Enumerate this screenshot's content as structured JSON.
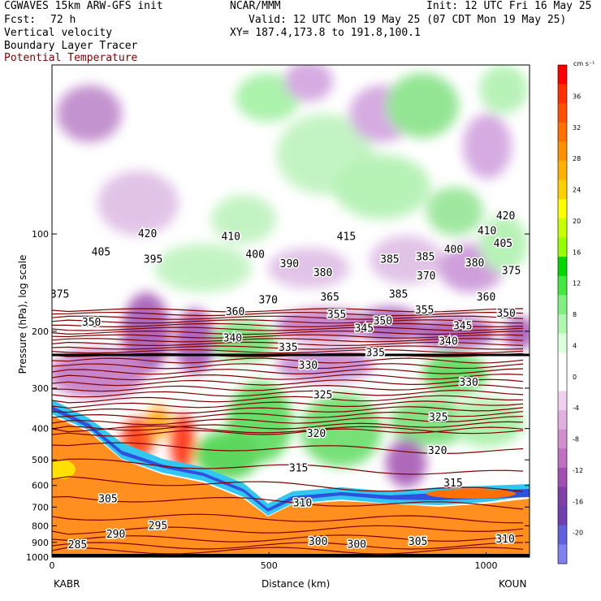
{
  "header": {
    "model": "CGWAVES 15km ARW-GFS init",
    "org": "NCAR/MMM",
    "init": "Init: 12 UTC Fri 16 May 25",
    "fcst_label": "Fcst:",
    "fcst_value": "72 h",
    "valid": "Valid: 12 UTC Mon 19 May 25 (07 CDT Mon 19 May 25)",
    "field1": "Vertical velocity",
    "xy": "XY= 187.4,173.8 to 191.8,100.1",
    "field2": "Boundary Layer Tracer",
    "field3": "Potential Temperature"
  },
  "colors": {
    "theta": "#800000",
    "terrain": "#000000"
  },
  "chart_data": {
    "type": "cross-section",
    "xlabel": "Distance (km)",
    "ylabel": "Pressure (hPa), log scale",
    "xlim": [
      0,
      1100
    ],
    "ylim": [
      1000,
      30
    ],
    "x_ticks": [
      0,
      500,
      1000
    ],
    "y_ticks": [
      100,
      200,
      300,
      400,
      500,
      600,
      700,
      800,
      900,
      1000
    ],
    "left_station": "KABR",
    "right_station": "KOUN",
    "colorbar": {
      "units": "cm s⁻¹",
      "ticks": [
        36,
        32,
        28,
        24,
        20,
        16,
        12,
        8,
        4,
        0,
        -4,
        -8,
        -12,
        -16,
        -20
      ],
      "colors": [
        "#ff0000",
        "#ff3000",
        "#ff5000",
        "#ff7000",
        "#ff9000",
        "#ffb000",
        "#ffd000",
        "#ffff00",
        "#c8ff00",
        "#96ff00",
        "#00d800",
        "#40e840",
        "#80f080",
        "#b0f8b0",
        "#dcffdc",
        "#ffffff",
        "#ffffff",
        "#f0d0f0",
        "#e0b0e0",
        "#d090d0",
        "#c070c0",
        "#a050b0",
        "#8040a8",
        "#7040b0",
        "#6060e0",
        "#8080f0"
      ]
    },
    "theta_labels": [
      {
        "text": "420",
        "x": 220,
        "p": 100
      },
      {
        "text": "410",
        "x": 412,
        "p": 102
      },
      {
        "text": "415",
        "x": 678,
        "p": 102
      },
      {
        "text": "410",
        "x": 1002,
        "p": 98
      },
      {
        "text": "420",
        "x": 1045,
        "p": 88
      },
      {
        "text": "405",
        "x": 113,
        "p": 114
      },
      {
        "text": "395",
        "x": 233,
        "p": 120
      },
      {
        "text": "400",
        "x": 468,
        "p": 116
      },
      {
        "text": "390",
        "x": 547,
        "p": 124
      },
      {
        "text": "385",
        "x": 778,
        "p": 120
      },
      {
        "text": "385",
        "x": 860,
        "p": 118
      },
      {
        "text": "400",
        "x": 925,
        "p": 112
      },
      {
        "text": "405",
        "x": 1039,
        "p": 107
      },
      {
        "text": "380",
        "x": 624,
        "p": 132
      },
      {
        "text": "380",
        "x": 974,
        "p": 123
      },
      {
        "text": "375",
        "x": 1058,
        "p": 130
      },
      {
        "text": "370",
        "x": 862,
        "p": 135
      },
      {
        "text": "375",
        "x": 18,
        "p": 154
      },
      {
        "text": "370",
        "x": 498,
        "p": 160
      },
      {
        "text": "365",
        "x": 640,
        "p": 157
      },
      {
        "text": "385",
        "x": 798,
        "p": 154
      },
      {
        "text": "360",
        "x": 1000,
        "p": 157
      },
      {
        "text": "360",
        "x": 422,
        "p": 174
      },
      {
        "text": "355",
        "x": 656,
        "p": 178
      },
      {
        "text": "355",
        "x": 858,
        "p": 172
      },
      {
        "text": "350",
        "x": 762,
        "p": 186
      },
      {
        "text": "345",
        "x": 946,
        "p": 193
      },
      {
        "text": "350",
        "x": 1046,
        "p": 176
      },
      {
        "text": "350",
        "x": 91,
        "p": 188
      },
      {
        "text": "345",
        "x": 719,
        "p": 196
      },
      {
        "text": "340",
        "x": 416,
        "p": 210
      },
      {
        "text": "340",
        "x": 913,
        "p": 215
      },
      {
        "text": "335",
        "x": 544,
        "p": 225
      },
      {
        "text": "335",
        "x": 745,
        "p": 233
      },
      {
        "text": "330",
        "x": 590,
        "p": 255
      },
      {
        "text": "330",
        "x": 960,
        "p": 288
      },
      {
        "text": "325",
        "x": 624,
        "p": 315
      },
      {
        "text": "325",
        "x": 890,
        "p": 370
      },
      {
        "text": "320",
        "x": 609,
        "p": 415
      },
      {
        "text": "320",
        "x": 888,
        "p": 468
      },
      {
        "text": "315",
        "x": 568,
        "p": 530
      },
      {
        "text": "315",
        "x": 924,
        "p": 590
      },
      {
        "text": "310",
        "x": 577,
        "p": 680
      },
      {
        "text": "305",
        "x": 129,
        "p": 662
      },
      {
        "text": "295",
        "x": 244,
        "p": 800
      },
      {
        "text": "290",
        "x": 147,
        "p": 850
      },
      {
        "text": "285",
        "x": 59,
        "p": 918
      },
      {
        "text": "300",
        "x": 613,
        "p": 895
      },
      {
        "text": "300",
        "x": 702,
        "p": 915
      },
      {
        "text": "305",
        "x": 843,
        "p": 895
      },
      {
        "text": "310",
        "x": 1044,
        "p": 880
      }
    ]
  }
}
